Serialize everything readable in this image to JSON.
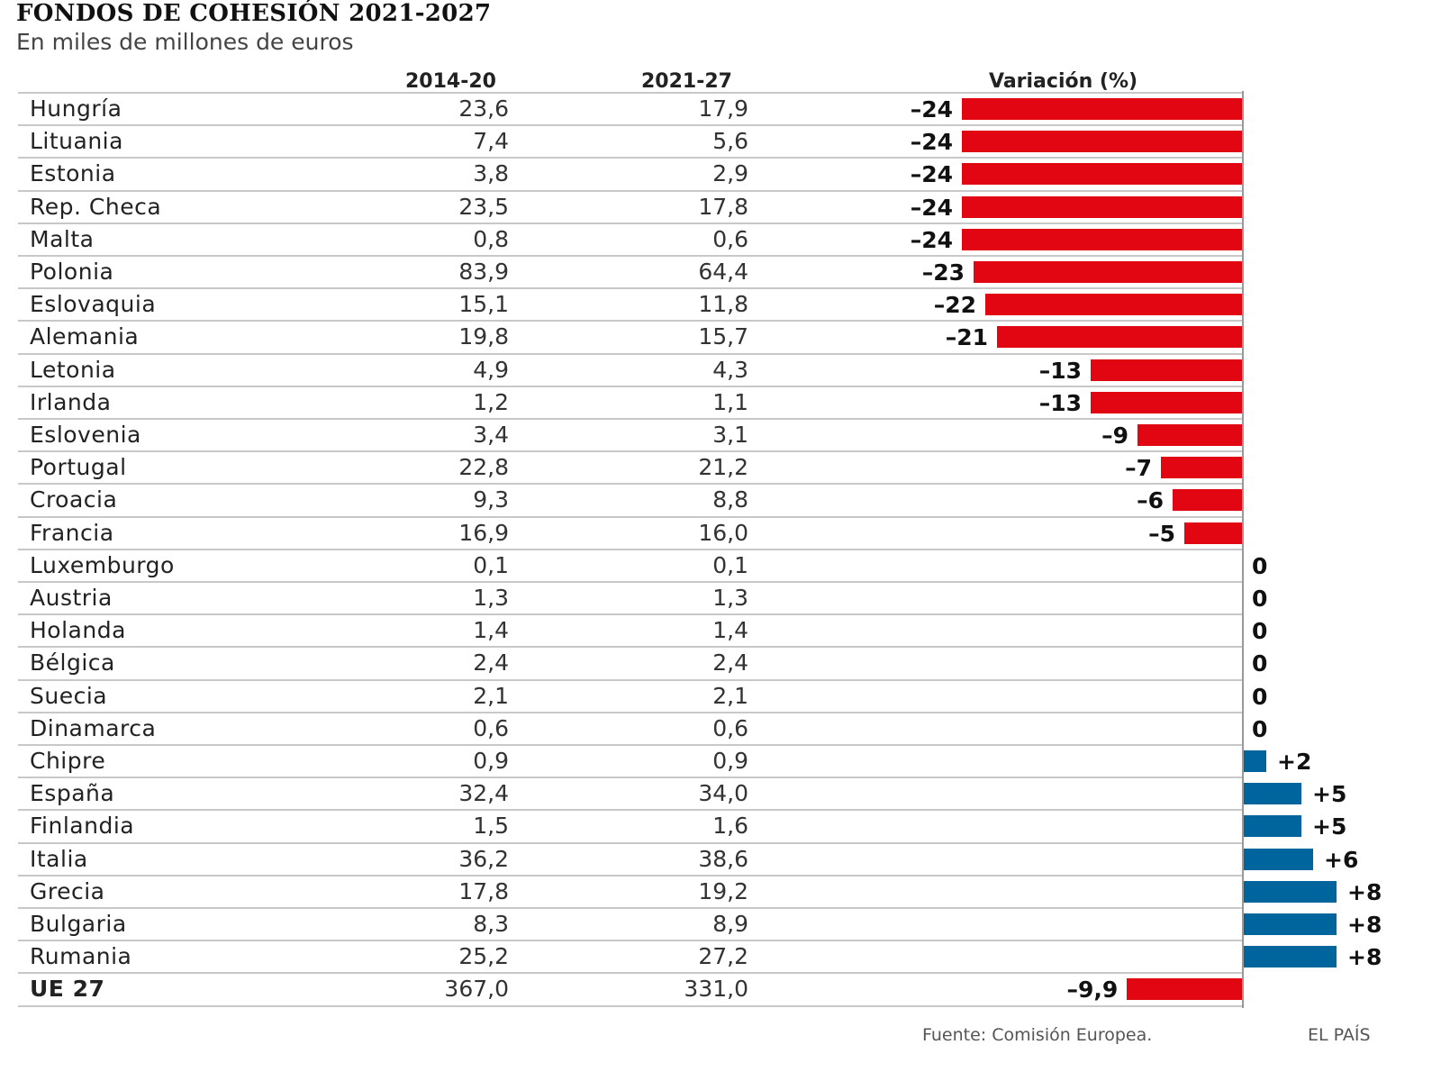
{
  "chart_data": {
    "type": "table",
    "title": "FONDOS DE COHESIÓN 2021-2027",
    "subtitle": "En miles de millones de euros",
    "columns": [
      "",
      "2014-20",
      "2021-27",
      "Variación (%)"
    ],
    "rows": [
      {
        "country": "Hungría",
        "v2014": "23,6",
        "v2021": "17,9",
        "var": -24,
        "var_label": "–24"
      },
      {
        "country": "Lituania",
        "v2014": "7,4",
        "v2021": "5,6",
        "var": -24,
        "var_label": "–24"
      },
      {
        "country": "Estonia",
        "v2014": "3,8",
        "v2021": "2,9",
        "var": -24,
        "var_label": "–24"
      },
      {
        "country": "Rep. Checa",
        "v2014": "23,5",
        "v2021": "17,8",
        "var": -24,
        "var_label": "–24"
      },
      {
        "country": "Malta",
        "v2014": "0,8",
        "v2021": "0,6",
        "var": -24,
        "var_label": "–24"
      },
      {
        "country": "Polonia",
        "v2014": "83,9",
        "v2021": "64,4",
        "var": -23,
        "var_label": "–23"
      },
      {
        "country": "Eslovaquia",
        "v2014": "15,1",
        "v2021": "11,8",
        "var": -22,
        "var_label": "–22"
      },
      {
        "country": "Alemania",
        "v2014": "19,8",
        "v2021": "15,7",
        "var": -21,
        "var_label": "–21"
      },
      {
        "country": "Letonia",
        "v2014": "4,9",
        "v2021": "4,3",
        "var": -13,
        "var_label": "–13"
      },
      {
        "country": "Irlanda",
        "v2014": "1,2",
        "v2021": "1,1",
        "var": -13,
        "var_label": "–13"
      },
      {
        "country": "Eslovenia",
        "v2014": "3,4",
        "v2021": "3,1",
        "var": -9,
        "var_label": "–9"
      },
      {
        "country": "Portugal",
        "v2014": "22,8",
        "v2021": "21,2",
        "var": -7,
        "var_label": "–7"
      },
      {
        "country": "Croacia",
        "v2014": "9,3",
        "v2021": "8,8",
        "var": -6,
        "var_label": "–6"
      },
      {
        "country": "Francia",
        "v2014": "16,9",
        "v2021": "16,0",
        "var": -5,
        "var_label": "–5"
      },
      {
        "country": "Luxemburgo",
        "v2014": "0,1",
        "v2021": "0,1",
        "var": 0,
        "var_label": "0"
      },
      {
        "country": "Austria",
        "v2014": "1,3",
        "v2021": "1,3",
        "var": 0,
        "var_label": "0"
      },
      {
        "country": "Holanda",
        "v2014": "1,4",
        "v2021": "1,4",
        "var": 0,
        "var_label": "0"
      },
      {
        "country": "Bélgica",
        "v2014": "2,4",
        "v2021": "2,4",
        "var": 0,
        "var_label": "0"
      },
      {
        "country": "Suecia",
        "v2014": "2,1",
        "v2021": "2,1",
        "var": 0,
        "var_label": "0"
      },
      {
        "country": "Dinamarca",
        "v2014": "0,6",
        "v2021": "0,6",
        "var": 0,
        "var_label": "0"
      },
      {
        "country": "Chipre",
        "v2014": "0,9",
        "v2021": "0,9",
        "var": 2,
        "var_label": "+2"
      },
      {
        "country": "España",
        "v2014": "32,4",
        "v2021": "34,0",
        "var": 5,
        "var_label": "+5"
      },
      {
        "country": "Finlandia",
        "v2014": "1,5",
        "v2021": "1,6",
        "var": 5,
        "var_label": "+5"
      },
      {
        "country": "Italia",
        "v2014": "36,2",
        "v2021": "38,6",
        "var": 6,
        "var_label": "+6"
      },
      {
        "country": "Grecia",
        "v2014": "17,8",
        "v2021": "19,2",
        "var": 8,
        "var_label": "+8"
      },
      {
        "country": "Bulgaria",
        "v2014": "8,3",
        "v2021": "8,9",
        "var": 8,
        "var_label": "+8"
      },
      {
        "country": "Rumania",
        "v2014": "25,2",
        "v2021": "27,2",
        "var": 8,
        "var_label": "+8"
      },
      {
        "country": "UE 27",
        "v2014": "367,0",
        "v2021": "331,0",
        "var": -9.9,
        "var_label": "–9,9",
        "total": true
      }
    ],
    "colors": {
      "negative": "#e20613",
      "positive": "#00659d"
    },
    "source": "Fuente: Comisión Europea.",
    "brand": "EL PAÍS"
  }
}
